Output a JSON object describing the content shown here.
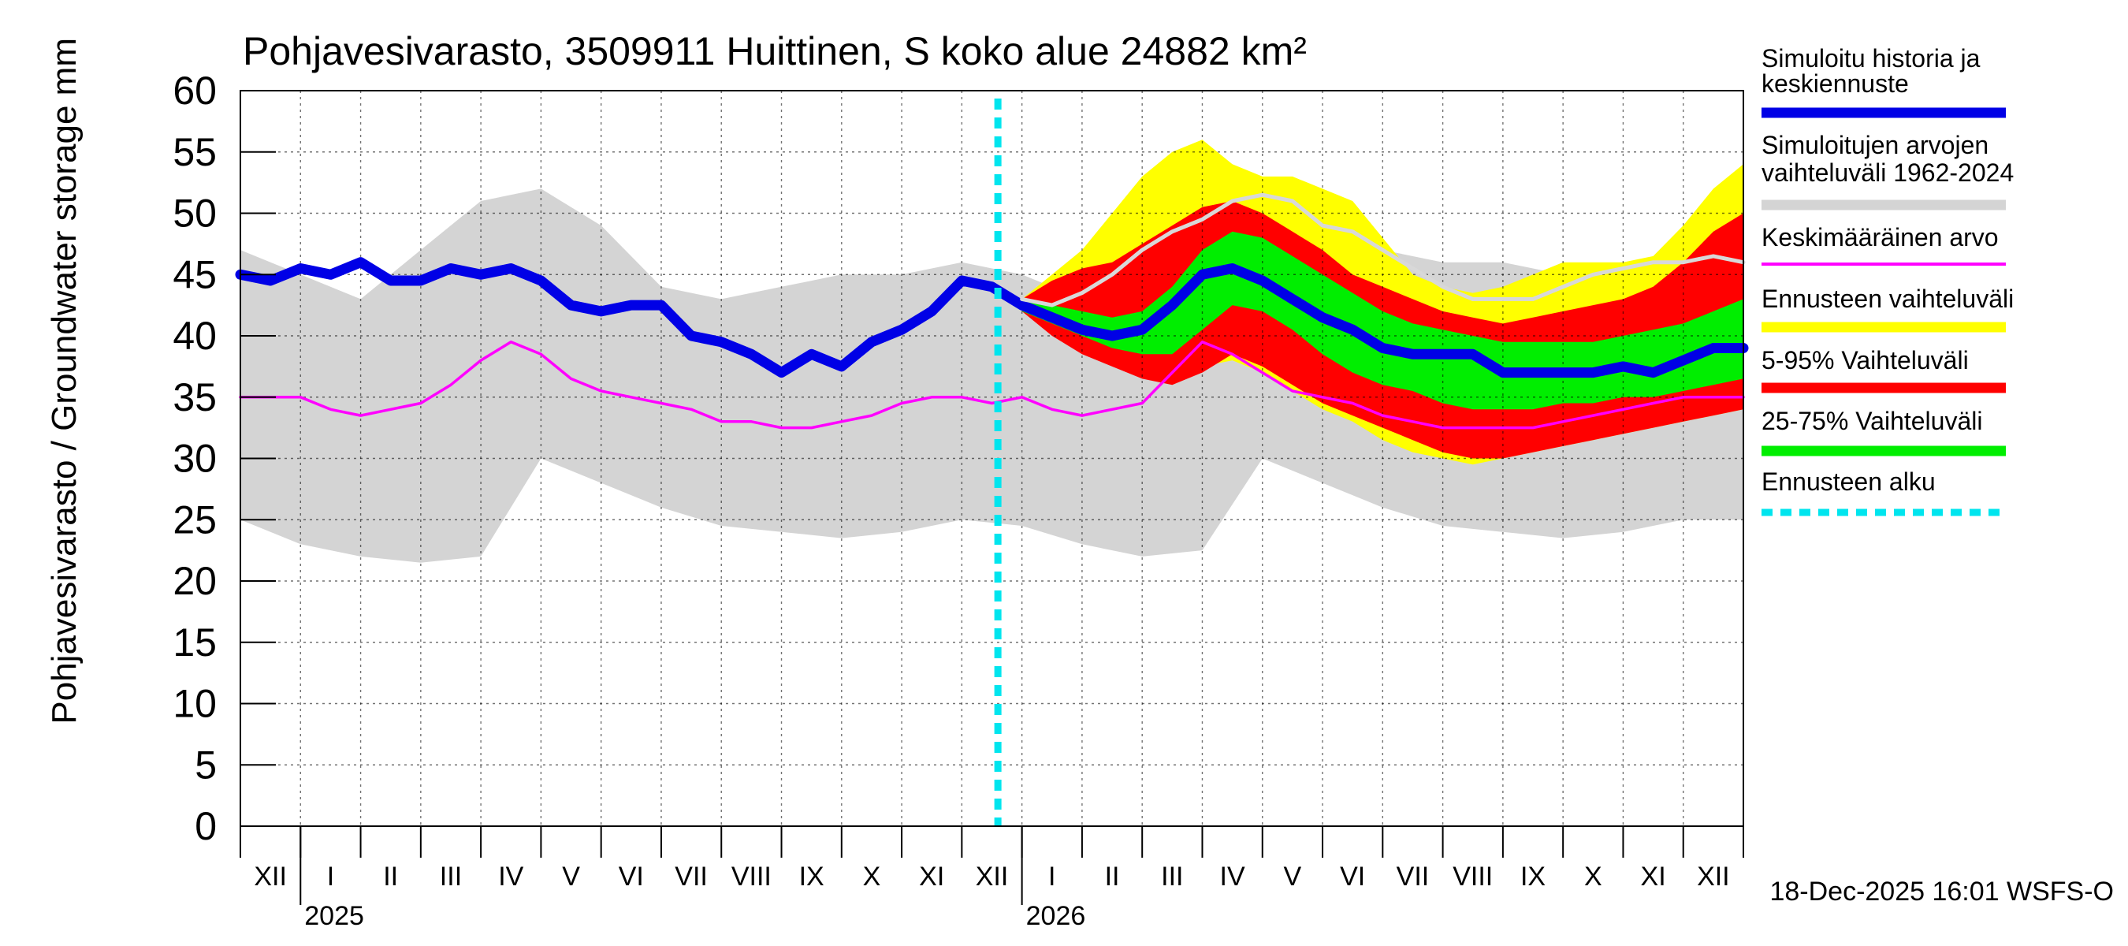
{
  "chart_data": {
    "type": "area",
    "title": "Pohjavesivarasto, 3509911 Huittinen, S koko alue 24882 km²",
    "ylabel": "Pohjavesivarasto / Groundwater storage   mm",
    "xlabel": "",
    "ylim": [
      0,
      60
    ],
    "yticks": [
      0,
      5,
      10,
      15,
      20,
      25,
      30,
      35,
      40,
      45,
      50,
      55,
      60
    ],
    "grid": true,
    "x_unit": "month index from start of Dec 2024",
    "xlim": [
      0,
      25
    ],
    "month_labels": [
      "XII",
      "I",
      "II",
      "III",
      "IV",
      "V",
      "VI",
      "VII",
      "VIII",
      "IX",
      "X",
      "XI",
      "XII",
      "I",
      "II",
      "III",
      "IV",
      "V",
      "VI",
      "VII",
      "VIII",
      "IX",
      "X",
      "XI",
      "XII"
    ],
    "year_labels": [
      {
        "label": "2025",
        "x": 1
      },
      {
        "label": "2026",
        "x": 13
      }
    ],
    "forecast_start_x": 12.6,
    "legend": [
      {
        "label": "Simuloitu historia ja keskiennuste",
        "color": "#0000e6",
        "kind": "thick"
      },
      {
        "label": "Simuloitujen arvojen vaihteluväli 1962-2024",
        "color": "#d4d4d4",
        "kind": "thick"
      },
      {
        "label": "Keskimääräinen arvo",
        "color": "#ff00ff",
        "kind": "thin"
      },
      {
        "label": "Ennusteen vaihteluväli",
        "color": "#ffff00",
        "kind": "thick"
      },
      {
        "label": "5-95% Vaihteluväli",
        "color": "#ff0000",
        "kind": "thick"
      },
      {
        "label": "25-75% Vaihteluväli",
        "color": "#00ee00",
        "kind": "thick"
      },
      {
        "label": "Ennusteen alku",
        "color": "#00e5ee",
        "kind": "dashed"
      }
    ],
    "legend_position": "right",
    "footer": "18-Dec-2025 16:01 WSFS-O",
    "series": [
      {
        "name": "Simuloitujen arvojen vaihteluväli 1962-2024",
        "role": "band",
        "color": "#d4d4d4",
        "x": [
          0,
          1,
          2,
          3,
          4,
          5,
          6,
          7,
          8,
          9,
          10,
          11,
          12,
          13,
          14,
          15,
          16,
          17,
          18,
          19,
          20,
          21,
          22,
          23,
          24,
          25
        ],
        "upper": [
          47,
          45,
          43,
          47,
          51,
          52,
          49,
          44,
          43,
          44,
          45,
          45,
          46,
          45,
          43,
          46,
          50,
          53,
          51,
          47,
          46,
          46,
          45,
          45,
          46,
          47
        ],
        "lower": [
          25,
          23,
          22,
          21.5,
          22,
          30,
          28,
          26,
          24.5,
          24,
          23.5,
          24,
          25,
          24.5,
          23,
          22,
          22.5,
          30,
          28,
          26,
          24.5,
          24,
          23.5,
          24,
          25,
          25
        ]
      },
      {
        "name": "Ennusteen vaihteluväli",
        "role": "band",
        "color": "#ffff00",
        "x": [
          13,
          13.5,
          14,
          14.5,
          15,
          15.5,
          16,
          16.5,
          17,
          17.5,
          18,
          18.5,
          19,
          19.5,
          20,
          20.5,
          21,
          21.5,
          22,
          22.5,
          23,
          23.5,
          24,
          24.5,
          25
        ],
        "upper": [
          43,
          45,
          47,
          50,
          53,
          55,
          56,
          54,
          53,
          53,
          52,
          51,
          48,
          45,
          44,
          43.5,
          44,
          45,
          46,
          46,
          46,
          46.5,
          49,
          52,
          54
        ],
        "lower": [
          42,
          40.5,
          39,
          38,
          37,
          37,
          37.5,
          38,
          37,
          35.5,
          34,
          33,
          31.5,
          30.5,
          30,
          29.5,
          30,
          30.5,
          31,
          31.5,
          32,
          32.5,
          33,
          33.5,
          34
        ]
      },
      {
        "name": "5-95% Vaihteluväli",
        "role": "band",
        "color": "#ff0000",
        "x": [
          13,
          13.5,
          14,
          14.5,
          15,
          15.5,
          16,
          16.5,
          17,
          17.5,
          18,
          18.5,
          19,
          19.5,
          20,
          20.5,
          21,
          21.5,
          22,
          22.5,
          23,
          23.5,
          24,
          24.5,
          25
        ],
        "upper": [
          43,
          44.5,
          45.5,
          46,
          47.5,
          49,
          50.5,
          51,
          50,
          48.5,
          47,
          45,
          44,
          43,
          42,
          41.5,
          41,
          41.5,
          42,
          42.5,
          43,
          44,
          46,
          48.5,
          50
        ],
        "lower": [
          42,
          40,
          38.5,
          37.5,
          36.5,
          36,
          37,
          38.5,
          37.5,
          36,
          34.5,
          33.5,
          32.5,
          31.5,
          30.5,
          30,
          30,
          30.5,
          31,
          31.5,
          32,
          32.5,
          33,
          33.5,
          34
        ]
      },
      {
        "name": "25-75% Vaihteluväli",
        "role": "band",
        "color": "#00ee00",
        "x": [
          13,
          13.5,
          14,
          14.5,
          15,
          15.5,
          16,
          16.5,
          17,
          17.5,
          18,
          18.5,
          19,
          19.5,
          20,
          20.5,
          21,
          21.5,
          22,
          22.5,
          23,
          23.5,
          24,
          24.5,
          25
        ],
        "upper": [
          43,
          42.5,
          42,
          41.5,
          42,
          44,
          47,
          48.5,
          48,
          46.5,
          45,
          43.5,
          42,
          41,
          40.5,
          40,
          39.5,
          39.5,
          39.5,
          39.5,
          40,
          40.5,
          41,
          42,
          43
        ],
        "lower": [
          42,
          41,
          40,
          39,
          38.5,
          38.5,
          40.5,
          42.5,
          42,
          40.5,
          38.5,
          37,
          36,
          35.5,
          34.5,
          34,
          34,
          34,
          34.5,
          34.5,
          35,
          35,
          35.5,
          36,
          36.5
        ]
      },
      {
        "name": "Simuloitu historia ja keskiennuste",
        "role": "line",
        "color": "#0000e6",
        "x": [
          0,
          0.5,
          1,
          1.5,
          2,
          2.5,
          3,
          3.5,
          4,
          4.5,
          5,
          5.5,
          6,
          6.5,
          7,
          7.5,
          8,
          8.5,
          9,
          9.5,
          10,
          10.5,
          11,
          11.5,
          12,
          12.5,
          13,
          13.5,
          14,
          14.5,
          15,
          15.5,
          16,
          16.5,
          17,
          17.5,
          18,
          18.5,
          19,
          19.5,
          20,
          20.5,
          21,
          21.5,
          22,
          22.5,
          23,
          23.5,
          24,
          24.5,
          25
        ],
        "values": [
          45,
          44.5,
          45.5,
          45,
          46,
          44.5,
          44.5,
          45.5,
          45,
          45.5,
          44.5,
          42.5,
          42,
          42.5,
          42.5,
          40,
          39.5,
          38.5,
          37,
          38.5,
          37.5,
          39.5,
          40.5,
          42,
          44.5,
          44,
          42.5,
          41.5,
          40.5,
          40,
          40.5,
          42.5,
          45,
          45.5,
          44.5,
          43,
          41.5,
          40.5,
          39,
          38.5,
          38.5,
          38.5,
          37,
          37,
          37,
          37,
          37.5,
          37,
          38,
          39,
          39
        ]
      },
      {
        "name": "Keskimääräinen arvo",
        "role": "line",
        "color": "#ff00ff",
        "x": [
          0,
          0.5,
          1,
          1.5,
          2,
          2.5,
          3,
          3.5,
          4,
          4.5,
          5,
          5.5,
          6,
          6.5,
          7,
          7.5,
          8,
          8.5,
          9,
          9.5,
          10,
          10.5,
          11,
          11.5,
          12,
          12.5,
          13,
          13.5,
          14,
          14.5,
          15,
          15.5,
          16,
          16.5,
          17,
          17.5,
          18,
          18.5,
          19,
          19.5,
          20,
          20.5,
          21,
          21.5,
          22,
          22.5,
          23,
          23.5,
          24,
          24.5,
          25
        ],
        "values": [
          35,
          35,
          35,
          34,
          33.5,
          34,
          34.5,
          36,
          38,
          39.5,
          38.5,
          36.5,
          35.5,
          35,
          34.5,
          34,
          33,
          33,
          32.5,
          32.5,
          33,
          33.5,
          34.5,
          35,
          35,
          34.5,
          35,
          34,
          33.5,
          34,
          34.5,
          37,
          39.5,
          38.5,
          37,
          35.5,
          35,
          34.5,
          33.5,
          33,
          32.5,
          32.5,
          32.5,
          32.5,
          33,
          33.5,
          34,
          34.5,
          35,
          35,
          35
        ]
      },
      {
        "name": "Simulated median (light grey, forecast)",
        "role": "line",
        "color": "#d8d8d8",
        "x": [
          13,
          13.5,
          14,
          14.5,
          15,
          15.5,
          16,
          16.5,
          17,
          17.5,
          18,
          18.5,
          19,
          19.5,
          20,
          20.5,
          21,
          21.5,
          22,
          22.5,
          23,
          23.5,
          24,
          24.5,
          25
        ],
        "values": [
          43,
          42.5,
          43.5,
          45,
          47,
          48.5,
          49.5,
          51,
          51.5,
          51,
          49,
          48.5,
          47,
          45.5,
          44,
          43,
          43,
          43,
          44,
          45,
          45.5,
          46,
          46,
          46.5,
          46
        ]
      }
    ]
  }
}
